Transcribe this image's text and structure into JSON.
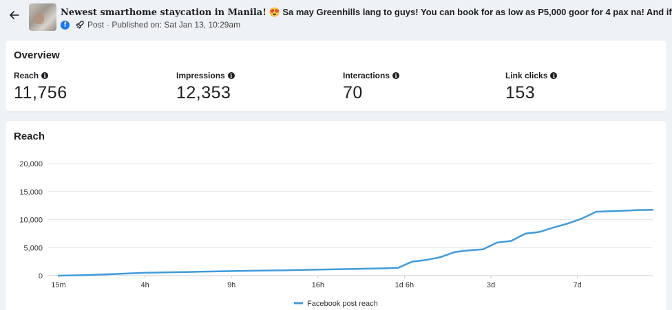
{
  "header": {
    "back_icon": "arrow-left-icon",
    "title_bold": "Newest smarthome staycation in Manila!",
    "title_emoji": "😍",
    "title_rest": "Sa may Greenhills lang to guys! You can book for as low as P5,000 goor for 4 pax na! And if you wan",
    "post_type": "Post",
    "published": "· Published on: Sat Jan 13, 10:29am"
  },
  "overview": {
    "title": "Overview",
    "metrics": [
      {
        "label": "Reach",
        "value": "11,756"
      },
      {
        "label": "Impressions",
        "value": "12,353"
      },
      {
        "label": "Interactions",
        "value": "70"
      },
      {
        "label": "Link clicks",
        "value": "153"
      }
    ]
  },
  "reach": {
    "title": "Reach"
  },
  "colors": {
    "series": "#3e9bdc",
    "background": "#eef2f6",
    "brand": "#1877f2"
  },
  "chart_data": {
    "type": "line",
    "title": "Reach",
    "ylim": [
      0,
      20000
    ],
    "y_ticks": [
      "0",
      "5,000",
      "10,000",
      "15,000",
      "20,000"
    ],
    "x_tick_labels": [
      "15m",
      "4h",
      "9h",
      "16h",
      "1d 6h",
      "3d",
      "7d"
    ],
    "grid": true,
    "legend_position": "bottom",
    "series": [
      {
        "name": "Facebook post reach",
        "values": [
          0,
          50,
          100,
          200,
          300,
          400,
          500,
          550,
          600,
          650,
          700,
          750,
          800,
          850,
          900,
          920,
          950,
          1000,
          1050,
          1100,
          1150,
          1200,
          1250,
          1300,
          1400,
          2500,
          2800,
          3300,
          4200,
          4500,
          4700,
          5900,
          6200,
          7500,
          7800,
          8600,
          9300,
          10200,
          11400,
          11500,
          11600,
          11700,
          11756
        ]
      }
    ]
  }
}
